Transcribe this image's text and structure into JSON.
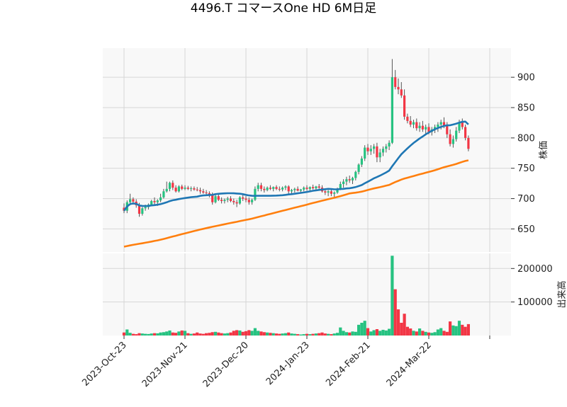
{
  "chart_data": {
    "type": "candlestick",
    "title": "4496.T コマースOne HD 6M日足",
    "ylabel": "株価",
    "volume_label": "出来高",
    "ylim": [
      612,
      948
    ],
    "volume_ylim": [
      0,
      245000
    ],
    "price_ticks": [
      650,
      700,
      750,
      800,
      850,
      900
    ],
    "volume_ticks": [
      100000,
      200000
    ],
    "x_ticks": [
      {
        "i": 0,
        "label": "2023-Oct-23"
      },
      {
        "i": 20,
        "label": "2023-Nov-21"
      },
      {
        "i": 40,
        "label": "2023-Dec-20"
      },
      {
        "i": 60,
        "label": "2024-Jan-23"
      },
      {
        "i": 80,
        "label": "2024-Feb-21"
      },
      {
        "i": 100,
        "label": "2024-Mar-22"
      },
      {
        "i": 120,
        "label": ""
      }
    ],
    "colors": {
      "up": "#26c281",
      "down": "#f23645",
      "ma_short": "#1f77b4",
      "ma_long": "#ff7f0e"
    },
    "candles": [
      [
        685,
        692,
        676,
        680,
        9000
      ],
      [
        680,
        697,
        676,
        694,
        18000
      ],
      [
        694,
        708,
        690,
        699,
        8000
      ],
      [
        699,
        702,
        690,
        695,
        5000
      ],
      [
        695,
        699,
        685,
        689,
        4000
      ],
      [
        689,
        693,
        670,
        675,
        7000
      ],
      [
        675,
        686,
        672,
        684,
        6000
      ],
      [
        684,
        690,
        680,
        686,
        5000
      ],
      [
        686,
        692,
        682,
        690,
        4500
      ],
      [
        690,
        698,
        688,
        696,
        6000
      ],
      [
        696,
        702,
        690,
        694,
        7000
      ],
      [
        694,
        699,
        688,
        697,
        6500
      ],
      [
        697,
        708,
        694,
        702,
        9000
      ],
      [
        702,
        716,
        700,
        712,
        10000
      ],
      [
        712,
        728,
        710,
        716,
        12000
      ],
      [
        716,
        728,
        712,
        726,
        15000
      ],
      [
        726,
        730,
        714,
        718,
        9000
      ],
      [
        718,
        722,
        710,
        712,
        8000
      ],
      [
        712,
        722,
        710,
        720,
        12000
      ],
      [
        720,
        723,
        714,
        716,
        15000
      ],
      [
        716,
        722,
        714,
        718,
        14000
      ],
      [
        718,
        721,
        714,
        716,
        7000
      ],
      [
        716,
        720,
        712,
        717,
        5000
      ],
      [
        717,
        720,
        713,
        715,
        6000
      ],
      [
        715,
        719,
        712,
        714,
        9000
      ],
      [
        714,
        718,
        708,
        712,
        6000
      ],
      [
        712,
        716,
        708,
        710,
        5000
      ],
      [
        710,
        714,
        706,
        709,
        7000
      ],
      [
        709,
        712,
        702,
        706,
        8000
      ],
      [
        706,
        710,
        690,
        694,
        10000
      ],
      [
        694,
        706,
        692,
        704,
        11000
      ],
      [
        704,
        708,
        696,
        698,
        9000
      ],
      [
        698,
        702,
        692,
        696,
        7000
      ],
      [
        696,
        700,
        692,
        698,
        6000
      ],
      [
        698,
        703,
        694,
        700,
        7000
      ],
      [
        700,
        704,
        694,
        696,
        9000
      ],
      [
        696,
        700,
        690,
        694,
        14000
      ],
      [
        694,
        698,
        686,
        692,
        16000
      ],
      [
        692,
        704,
        690,
        702,
        15000
      ],
      [
        702,
        706,
        696,
        700,
        11000
      ],
      [
        700,
        704,
        694,
        698,
        13000
      ],
      [
        698,
        702,
        690,
        694,
        16000
      ],
      [
        694,
        700,
        690,
        698,
        14000
      ],
      [
        698,
        720,
        696,
        716,
        22000
      ],
      [
        716,
        726,
        712,
        722,
        14000
      ],
      [
        722,
        726,
        712,
        716,
        12000
      ],
      [
        716,
        720,
        710,
        714,
        10000
      ],
      [
        714,
        720,
        712,
        718,
        9000
      ],
      [
        718,
        722,
        714,
        716,
        8000
      ],
      [
        716,
        720,
        712,
        719,
        7000
      ],
      [
        719,
        722,
        714,
        716,
        6000
      ],
      [
        716,
        720,
        712,
        715,
        5000
      ],
      [
        715,
        720,
        712,
        718,
        6000
      ],
      [
        718,
        722,
        714,
        720,
        7000
      ],
      [
        720,
        722,
        708,
        712,
        9000
      ],
      [
        712,
        716,
        708,
        714,
        6000
      ],
      [
        714,
        718,
        710,
        716,
        5000
      ],
      [
        716,
        720,
        712,
        713,
        4000
      ],
      [
        713,
        716,
        710,
        715,
        3000
      ],
      [
        715,
        720,
        712,
        718,
        4000
      ],
      [
        718,
        722,
        713,
        716,
        5000
      ],
      [
        716,
        720,
        712,
        719,
        4000
      ],
      [
        719,
        723,
        715,
        717,
        5000
      ],
      [
        717,
        721,
        713,
        720,
        6000
      ],
      [
        720,
        724,
        716,
        718,
        7000
      ],
      [
        718,
        722,
        710,
        712,
        9000
      ],
      [
        712,
        716,
        706,
        710,
        6000
      ],
      [
        710,
        714,
        704,
        712,
        5000
      ],
      [
        712,
        715,
        704,
        708,
        4000
      ],
      [
        708,
        712,
        702,
        710,
        6000
      ],
      [
        710,
        718,
        708,
        716,
        8000
      ],
      [
        716,
        728,
        714,
        724,
        24000
      ],
      [
        724,
        732,
        718,
        728,
        14000
      ],
      [
        728,
        736,
        722,
        732,
        10000
      ],
      [
        732,
        738,
        726,
        730,
        9000
      ],
      [
        730,
        736,
        724,
        734,
        12000
      ],
      [
        734,
        746,
        730,
        744,
        11000
      ],
      [
        744,
        758,
        740,
        756,
        32000
      ],
      [
        756,
        770,
        752,
        766,
        38000
      ],
      [
        766,
        788,
        762,
        784,
        44000
      ],
      [
        784,
        790,
        772,
        778,
        22000
      ],
      [
        778,
        788,
        772,
        782,
        12000
      ],
      [
        782,
        790,
        774,
        786,
        16000
      ],
      [
        786,
        792,
        760,
        768,
        19000
      ],
      [
        768,
        782,
        760,
        776,
        14000
      ],
      [
        776,
        786,
        770,
        782,
        17000
      ],
      [
        782,
        790,
        776,
        786,
        15000
      ],
      [
        786,
        796,
        780,
        792,
        20000
      ],
      [
        792,
        930,
        790,
        900,
        238000
      ],
      [
        900,
        912,
        880,
        884,
        138000
      ],
      [
        884,
        898,
        872,
        880,
        78000
      ],
      [
        880,
        892,
        866,
        870,
        38000
      ],
      [
        870,
        880,
        830,
        835,
        65000
      ],
      [
        835,
        840,
        824,
        828,
        26000
      ],
      [
        828,
        836,
        818,
        822,
        21000
      ],
      [
        822,
        830,
        816,
        826,
        14000
      ],
      [
        826,
        832,
        812,
        816,
        12000
      ],
      [
        816,
        826,
        810,
        820,
        21000
      ],
      [
        820,
        828,
        810,
        814,
        14000
      ],
      [
        814,
        822,
        806,
        818,
        11000
      ],
      [
        818,
        824,
        806,
        810,
        9000
      ],
      [
        810,
        818,
        804,
        814,
        8000
      ],
      [
        814,
        822,
        808,
        818,
        10000
      ],
      [
        818,
        826,
        810,
        822,
        18000
      ],
      [
        822,
        830,
        814,
        826,
        22000
      ],
      [
        826,
        834,
        816,
        820,
        14000
      ],
      [
        820,
        826,
        800,
        806,
        11000
      ],
      [
        806,
        814,
        786,
        790,
        42000
      ],
      [
        790,
        804,
        784,
        798,
        30000
      ],
      [
        798,
        818,
        794,
        812,
        28000
      ],
      [
        812,
        830,
        808,
        826,
        44000
      ],
      [
        826,
        832,
        814,
        818,
        32000
      ],
      [
        818,
        822,
        796,
        800,
        26000
      ],
      [
        800,
        804,
        778,
        782,
        34000
      ]
    ]
  }
}
